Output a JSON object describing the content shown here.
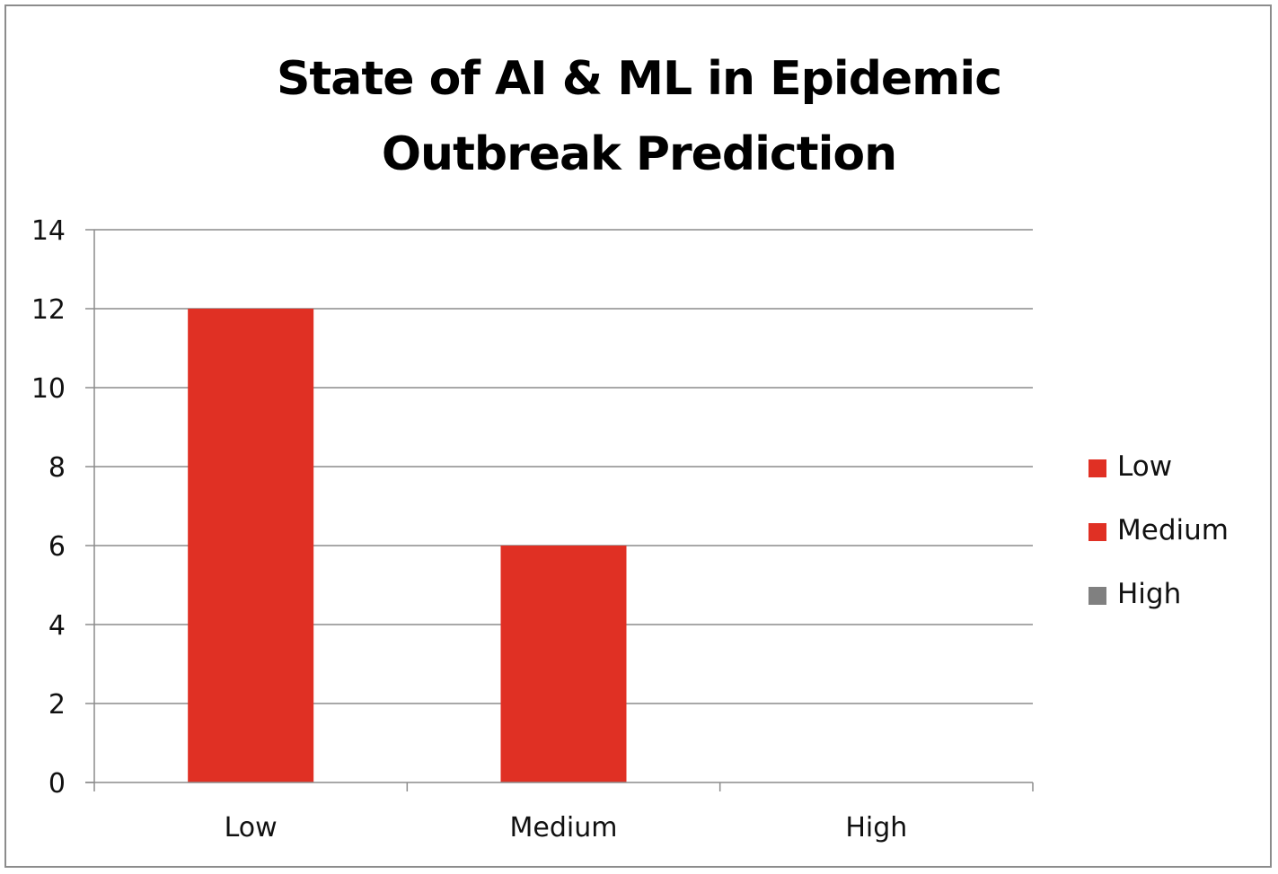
{
  "chart_data": {
    "type": "bar",
    "title_lines": [
      "State of AI & ML in Epidemic",
      "Outbreak Prediction"
    ],
    "categories": [
      "Low",
      "Medium",
      "High"
    ],
    "values": [
      12,
      6,
      0
    ],
    "bar_colors": [
      "#e03024",
      "#e03024",
      "#808080"
    ],
    "ylim": [
      0,
      14
    ],
    "yticks": [
      "0",
      "2",
      "4",
      "6",
      "8",
      "10",
      "12",
      "14"
    ],
    "grid": true,
    "legend_position": "right",
    "legend": [
      {
        "label": "Low",
        "color": "#e03024"
      },
      {
        "label": "Medium",
        "color": "#e03024"
      },
      {
        "label": "High",
        "color": "#808080"
      }
    ]
  }
}
